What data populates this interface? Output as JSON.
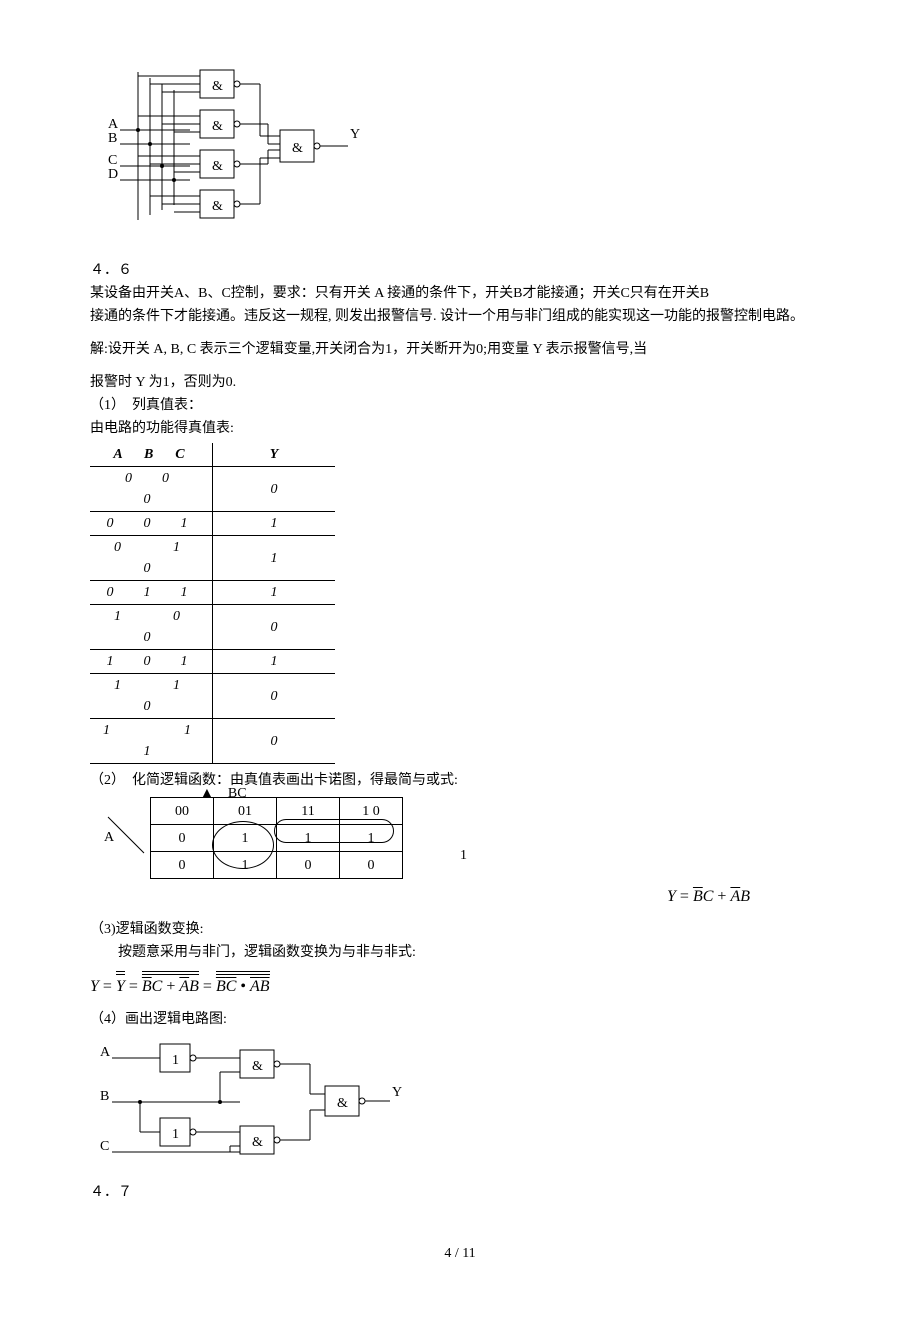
{
  "circuit1": {
    "inputs": [
      "A",
      "B",
      "C",
      "D"
    ],
    "gate_symbol": "&",
    "output": "Y"
  },
  "problem46": {
    "number": "４．６",
    "text_line1": "某设备由开关A、B、C控制，要求：只有开关 A 接通的条件下，开关B才能接通；开关C只有在开关B",
    "text_line2": "接通的条件下才能接通。违反这一规程, 则发出报警信号. 设计一个用与非门组成的能实现这一功能的报警控制电路。",
    "solution_intro": "解:设开关 A, B, C 表示三个逻辑变量,开关闭合为1，开关断开为0;用变量 Y 表示报警信号,当",
    "solution_intro2": "报警时 Y 为1，否则为0.",
    "step1_label": "（1）　列真值表：",
    "step1_sub": "由电路的功能得真值表:",
    "truth_table": {
      "header_left": "A　B　C",
      "header_right": "Y",
      "rows": [
        [
          "0　0　　0",
          "0"
        ],
        [
          "0　0　1",
          "1"
        ],
        [
          "0　　1　　0",
          "1"
        ],
        [
          "0　1　1",
          "1"
        ],
        [
          "1　　0　　0",
          "0"
        ],
        [
          "1　0　1",
          "1"
        ],
        [
          "1　　1　　0",
          "0"
        ],
        [
          "1　　　1　1",
          "0"
        ]
      ]
    },
    "step2_label": "（2）　化简逻辑函数：由真值表画出卡诺图，得最简与或式:",
    "kmap": {
      "row_var": "A",
      "col_var": "BC",
      "col_labels": [
        "00",
        "01",
        "11",
        "1 0"
      ],
      "cells": [
        [
          "0",
          "1",
          "1",
          "1"
        ],
        [
          "0",
          "1",
          "0",
          "0"
        ]
      ],
      "side_note": "1",
      "result_prefix": "Y = ",
      "result": "B̄C + ĀB"
    },
    "step3_label": "（3)逻辑函数变换:",
    "step3_text": "按题意采用与非门，逻辑函数变换为与非与非式:",
    "step3_eq_plain": "Y = Y = BC + AB = BC • AB",
    "step4_label": "（4）画出逻辑电路图:"
  },
  "circuit2": {
    "inputs": [
      "A",
      "B",
      "C"
    ],
    "inv_symbol": "1",
    "gate_symbol": "&",
    "output": "Y"
  },
  "problem47": {
    "number": "４．７"
  },
  "footer": "4 / 11",
  "colors": {
    "text": "#000000",
    "bg": "#ffffff"
  }
}
